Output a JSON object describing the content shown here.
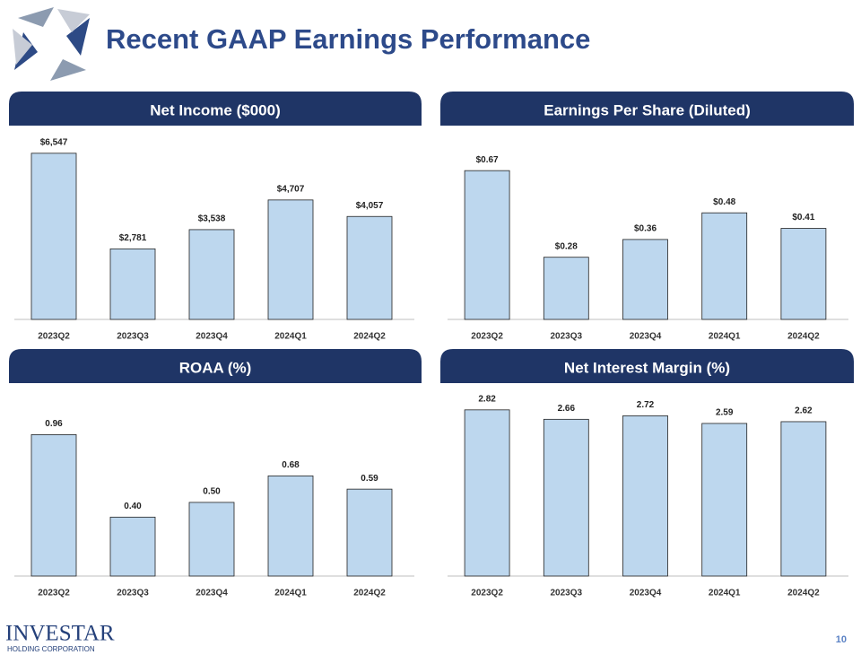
{
  "slide": {
    "title": "Recent GAAP Earnings Performance",
    "brand": "INVESTAR",
    "brand_sub": "HOLDING CORPORATION",
    "page": "10"
  },
  "chart_data": [
    {
      "type": "bar",
      "title": "Net Income ($000)",
      "categories": [
        "2023Q2",
        "2023Q3",
        "2023Q4",
        "2024Q1",
        "2024Q2"
      ],
      "values": [
        6547,
        2781,
        3538,
        4707,
        4057
      ],
      "value_labels": [
        "$6,547",
        "$2,781",
        "$3,538",
        "$4,707",
        "$4,057"
      ],
      "color": "#bdd7ee",
      "ylim": [
        0,
        7000
      ]
    },
    {
      "type": "bar",
      "title": "Earnings Per Share (Diluted)",
      "categories": [
        "2023Q2",
        "2023Q3",
        "2023Q4",
        "2024Q1",
        "2024Q2"
      ],
      "values": [
        0.67,
        0.28,
        0.36,
        0.48,
        0.41
      ],
      "value_labels": [
        "$0.67",
        "$0.28",
        "$0.36",
        "$0.48",
        "$0.41"
      ],
      "color": "#bdd7ee",
      "ylim": [
        0,
        0.8
      ]
    },
    {
      "type": "bar",
      "title": "ROAA (%)",
      "categories": [
        "2023Q2",
        "2023Q3",
        "2023Q4",
        "2024Q1",
        "2024Q2"
      ],
      "values": [
        0.96,
        0.4,
        0.5,
        0.68,
        0.59
      ],
      "value_labels": [
        "0.96",
        "0.40",
        "0.50",
        "0.68",
        "0.59"
      ],
      "color": "#bdd7ee",
      "ylim": [
        0,
        1.2
      ]
    },
    {
      "type": "bar",
      "title": "Net Interest Margin (%)",
      "categories": [
        "2023Q2",
        "2023Q3",
        "2023Q4",
        "2024Q1",
        "2024Q2"
      ],
      "values": [
        2.82,
        2.66,
        2.72,
        2.59,
        2.62
      ],
      "color": "#bdd7ee",
      "ylim": [
        0,
        3
      ]
    }
  ]
}
